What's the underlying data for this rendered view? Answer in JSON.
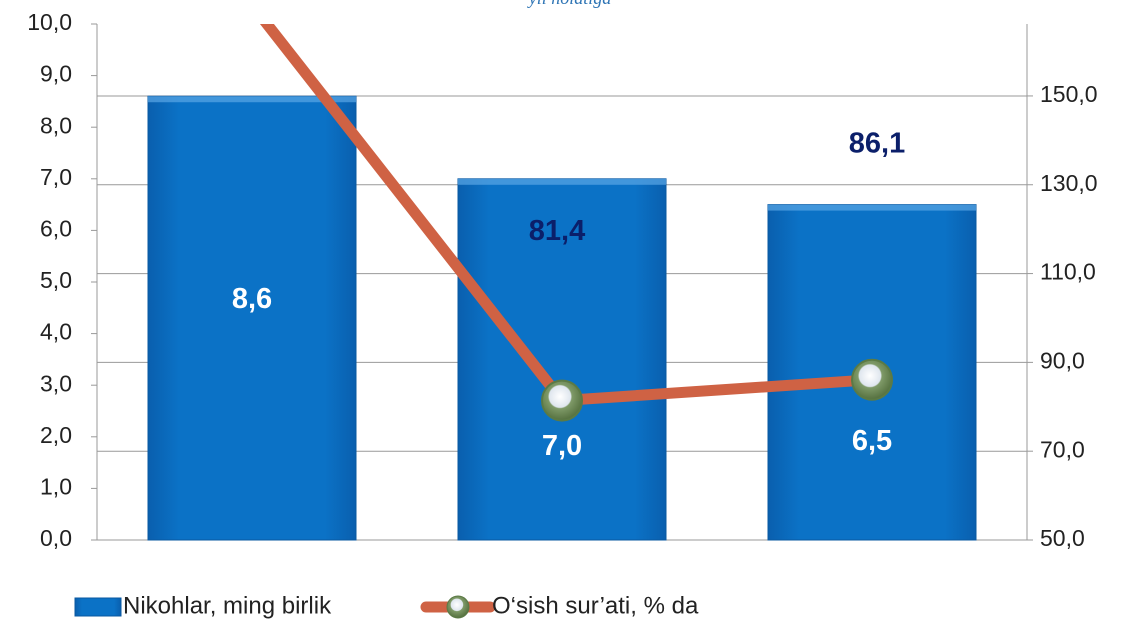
{
  "chart_data": {
    "type": "bar-line",
    "subtitle": "yil holatiga",
    "categories": [
      null,
      null,
      null
    ],
    "series": [
      {
        "name": "Nikohlar, ming birlik",
        "color": "#0a6fc2",
        "values": [
          8.6,
          7.0,
          6.5
        ],
        "value_labels": [
          "8,6",
          "7,0",
          "6,5"
        ]
      },
      {
        "name": "O‘sish sur’ati, % da",
        "color": "#cf6244",
        "axis": "y2",
        "values": [
          170.5,
          81.4,
          86.1
        ],
        "value_labels": [
          null,
          "81,4",
          "86,1"
        ]
      }
    ],
    "ylim": [
      0,
      10
    ],
    "yticks": [
      {
        "value": 0,
        "label": "0,0"
      },
      {
        "value": 1,
        "label": "1,0"
      },
      {
        "value": 2,
        "label": "2,0"
      },
      {
        "value": 3,
        "label": "3,0"
      },
      {
        "value": 4,
        "label": "4,0"
      },
      {
        "value": 5,
        "label": "5,0"
      },
      {
        "value": 6,
        "label": "6,0"
      },
      {
        "value": 7,
        "label": "7,0"
      },
      {
        "value": 8,
        "label": "8,0"
      },
      {
        "value": 9,
        "label": "9,0"
      },
      {
        "value": 10,
        "label": "10,0"
      }
    ],
    "y2lim": [
      50,
      166.2
    ],
    "y2ticks": [
      {
        "value": 50,
        "label": "50,0"
      },
      {
        "value": 70,
        "label": "70,0"
      },
      {
        "value": 90,
        "label": "90,0"
      },
      {
        "value": 110,
        "label": "110,0"
      },
      {
        "value": 130,
        "label": "130,0"
      },
      {
        "value": 150,
        "label": "150,0"
      }
    ],
    "grid": true,
    "legend": "bottom-left"
  }
}
